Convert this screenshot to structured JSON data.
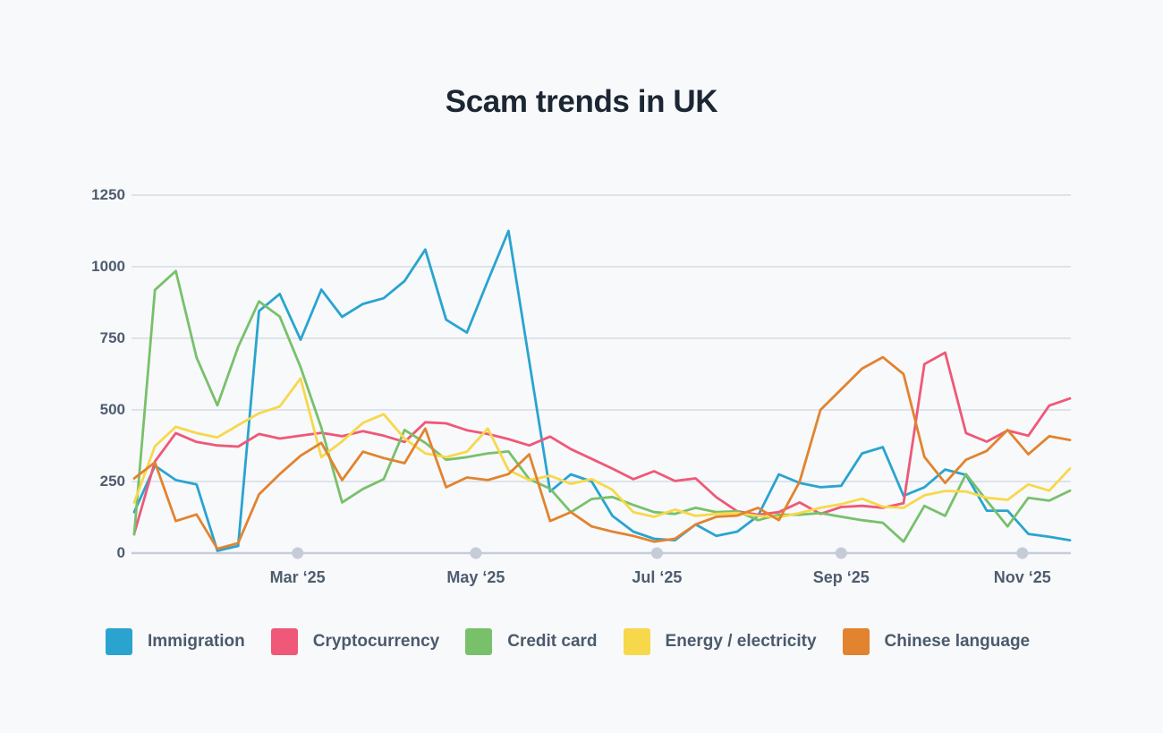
{
  "title": "Scam trends in UK",
  "colors": {
    "background": "#f7f9fb",
    "grid_line": "#dfe3ea",
    "axis_line": "#c7ced9",
    "tick_dot": "#c5ccd8",
    "axis_text": "#4e5c6e",
    "title_text": "#1d2633",
    "legend_text": "#4b5a6c"
  },
  "chart_data": {
    "type": "line",
    "title": "Scam trends in UK",
    "grid": "horizontal",
    "legend_position": "bottom",
    "x_axis": {
      "unit": "week",
      "n_points": 46,
      "tick_labels": [
        "Mar ‘25",
        "May ‘25",
        "Jul ‘25",
        "Sep ‘25",
        "Nov ‘25"
      ],
      "tick_week_positions": [
        7.86,
        16.43,
        25.14,
        34.0,
        42.71
      ]
    },
    "y_axis": {
      "ticks": [
        0,
        250,
        500,
        750,
        1000,
        1250
      ],
      "range": [
        0,
        1250
      ]
    },
    "series": [
      {
        "name": "Immigration",
        "color": "#2aa4cf",
        "values": [
          143,
          305,
          255,
          240,
          8,
          25,
          845,
          905,
          745,
          920,
          825,
          870,
          890,
          950,
          1060,
          815,
          770,
          950,
          1125,
          670,
          215,
          275,
          250,
          130,
          75,
          50,
          45,
          100,
          60,
          75,
          130,
          275,
          245,
          230,
          235,
          348,
          370,
          200,
          230,
          292,
          273,
          148,
          148,
          67,
          57,
          45
        ]
      },
      {
        "name": "Cryptocurrency",
        "color": "#ef5878",
        "values": [
          68,
          320,
          419,
          388,
          376,
          372,
          416,
          400,
          410,
          420,
          408,
          426,
          410,
          388,
          457,
          453,
          429,
          416,
          398,
          376,
          407,
          363,
          329,
          295,
          258,
          286,
          252,
          261,
          195,
          146,
          134,
          143,
          177,
          137,
          161,
          165,
          158,
          174,
          660,
          700,
          419,
          389,
          428,
          410,
          515,
          540
        ]
      },
      {
        "name": "Credit card",
        "color": "#79c06b",
        "values": [
          65,
          919,
          985,
          683,
          516,
          720,
          879,
          826,
          649,
          438,
          177,
          224,
          258,
          430,
          385,
          326,
          335,
          348,
          355,
          258,
          225,
          143,
          189,
          196,
          168,
          143,
          137,
          158,
          143,
          146,
          115,
          134,
          134,
          140,
          127,
          115,
          106,
          40,
          165,
          130,
          276,
          183,
          93,
          193,
          183,
          218
        ]
      },
      {
        "name": "Energy / electricity",
        "color": "#f7d84b",
        "values": [
          177,
          373,
          441,
          419,
          404,
          447,
          488,
          512,
          610,
          335,
          390,
          455,
          485,
          400,
          348,
          335,
          354,
          435,
          290,
          255,
          270,
          242,
          258,
          221,
          143,
          127,
          152,
          130,
          137,
          140,
          130,
          125,
          140,
          158,
          171,
          190,
          162,
          158,
          202,
          217,
          215,
          193,
          186,
          240,
          218,
          295
        ]
      },
      {
        "name": "Chinese language",
        "color": "#e2832f",
        "values": [
          261,
          317,
          112,
          135,
          15,
          35,
          205,
          276,
          340,
          385,
          255,
          354,
          332,
          314,
          435,
          230,
          264,
          255,
          276,
          345,
          112,
          143,
          93,
          75,
          60,
          40,
          50,
          100,
          127,
          131,
          158,
          115,
          249,
          500,
          572,
          644,
          684,
          625,
          336,
          245,
          326,
          357,
          430,
          345,
          408,
          395
        ]
      }
    ]
  }
}
